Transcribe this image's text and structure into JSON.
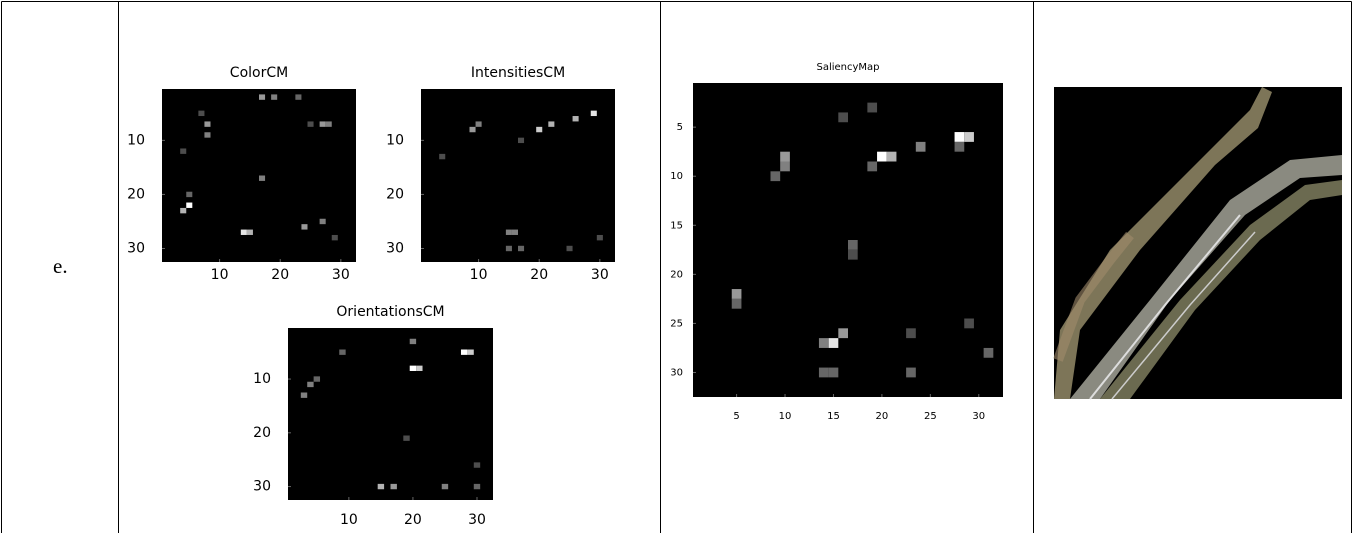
{
  "row_label": "e.",
  "chart_data": [
    {
      "type": "heatmap",
      "title": "ColorCM",
      "xlim": [
        0.5,
        32.5
      ],
      "ylim": [
        0.5,
        32.5
      ],
      "xticks": [
        10,
        20,
        30
      ],
      "yticks": [
        10,
        20,
        30
      ],
      "cells": [
        [
          5,
          22,
          1
        ],
        [
          4,
          23,
          0.7
        ],
        [
          5,
          20,
          0.4
        ],
        [
          8,
          7,
          0.6
        ],
        [
          8,
          9,
          0.5
        ],
        [
          7,
          5,
          0.3
        ],
        [
          4,
          12,
          0.3
        ],
        [
          14,
          27,
          0.9
        ],
        [
          15,
          27,
          0.7
        ],
        [
          17,
          2,
          0.6
        ],
        [
          19,
          2,
          0.5
        ],
        [
          17,
          17,
          0.5
        ],
        [
          24,
          26,
          0.6
        ],
        [
          27,
          25,
          0.5
        ],
        [
          27,
          7,
          0.6
        ],
        [
          28,
          7,
          0.5
        ],
        [
          25,
          7,
          0.3
        ],
        [
          29,
          28,
          0.3
        ],
        [
          23,
          2,
          0.4
        ]
      ]
    },
    {
      "type": "heatmap",
      "title": "IntensitiesCM",
      "xlim": [
        0.5,
        32.5
      ],
      "ylim": [
        0.5,
        32.5
      ],
      "xticks": [
        10,
        20,
        30
      ],
      "yticks": [
        10,
        20,
        30
      ],
      "cells": [
        [
          9,
          8,
          0.6
        ],
        [
          10,
          7,
          0.5
        ],
        [
          15,
          27,
          0.5
        ],
        [
          16,
          27,
          0.5
        ],
        [
          15,
          30,
          0.4
        ],
        [
          17,
          30,
          0.4
        ],
        [
          20,
          8,
          0.8
        ],
        [
          22,
          7,
          0.7
        ],
        [
          26,
          6,
          0.7
        ],
        [
          29,
          5,
          0.9
        ],
        [
          25,
          30,
          0.3
        ],
        [
          17,
          10,
          0.3
        ],
        [
          30,
          28,
          0.3
        ],
        [
          4,
          13,
          0.3
        ]
      ]
    },
    {
      "type": "heatmap",
      "title": "OrientationsCM",
      "xlim": [
        0.5,
        32.5
      ],
      "ylim": [
        0.5,
        32.5
      ],
      "xticks": [
        10,
        20,
        30
      ],
      "yticks": [
        10,
        20,
        30
      ],
      "cells": [
        [
          3,
          13,
          0.5
        ],
        [
          4,
          11,
          0.5
        ],
        [
          5,
          10,
          0.4
        ],
        [
          9,
          5,
          0.4
        ],
        [
          20,
          8,
          1
        ],
        [
          21,
          8,
          0.8
        ],
        [
          20,
          3,
          0.5
        ],
        [
          28,
          5,
          1
        ],
        [
          29,
          5,
          0.8
        ],
        [
          15,
          30,
          0.7
        ],
        [
          17,
          30,
          0.6
        ],
        [
          25,
          30,
          0.5
        ],
        [
          30,
          30,
          0.4
        ],
        [
          30,
          26,
          0.3
        ],
        [
          19,
          21,
          0.3
        ]
      ]
    },
    {
      "type": "heatmap",
      "title": "SaliencyMap",
      "xlim": [
        0.5,
        32.5
      ],
      "ylim": [
        0.5,
        32.5
      ],
      "xticks": [
        5,
        10,
        15,
        20,
        25,
        30
      ],
      "yticks": [
        5,
        10,
        15,
        20,
        25,
        30
      ],
      "cells": [
        [
          28,
          6,
          1
        ],
        [
          29,
          6,
          0.8
        ],
        [
          28,
          7,
          0.4
        ],
        [
          20,
          8,
          1
        ],
        [
          21,
          8,
          0.7
        ],
        [
          19,
          9,
          0.4
        ],
        [
          10,
          8,
          0.6
        ],
        [
          10,
          9,
          0.5
        ],
        [
          9,
          10,
          0.4
        ],
        [
          19,
          3,
          0.3
        ],
        [
          16,
          4,
          0.3
        ],
        [
          24,
          7,
          0.5
        ],
        [
          5,
          22,
          0.6
        ],
        [
          5,
          23,
          0.4
        ],
        [
          15,
          27,
          0.9
        ],
        [
          16,
          26,
          0.6
        ],
        [
          14,
          27,
          0.5
        ],
        [
          14,
          30,
          0.4
        ],
        [
          15,
          30,
          0.4
        ],
        [
          23,
          30,
          0.4
        ],
        [
          31,
          28,
          0.4
        ],
        [
          23,
          26,
          0.3
        ],
        [
          17,
          17,
          0.4
        ],
        [
          17,
          18,
          0.3
        ],
        [
          29,
          25,
          0.3
        ]
      ]
    }
  ]
}
